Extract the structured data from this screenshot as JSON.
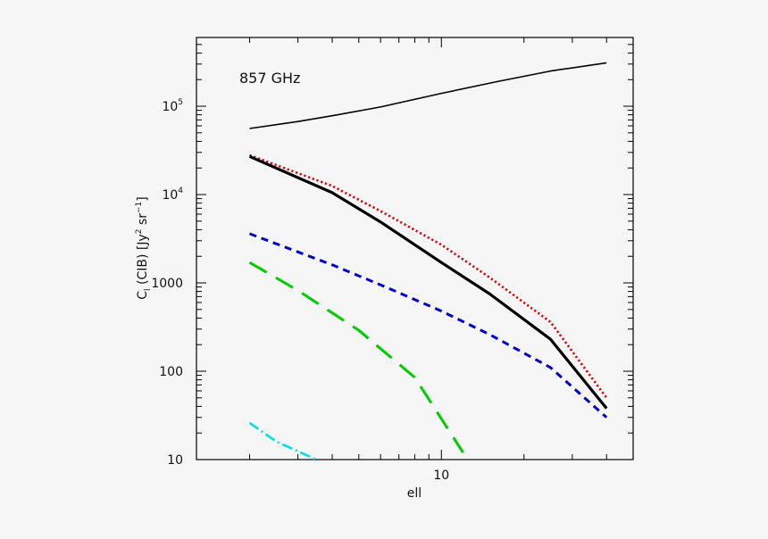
{
  "chart_data": {
    "type": "line",
    "title": "",
    "annotation": "857 GHz",
    "xlabel": "ell",
    "ylabel": "C_l (CIB) [Jy^2 sr^-1]",
    "xscale": "log",
    "yscale": "log",
    "xlim": [
      1.28,
      50
    ],
    "ylim": [
      10,
      600000
    ],
    "x_ticks": [
      {
        "value": 10,
        "label": "10"
      }
    ],
    "y_ticks": [
      {
        "value": 10,
        "label": "10"
      },
      {
        "value": 100,
        "label": "100"
      },
      {
        "value": 1000,
        "label": "1000"
      },
      {
        "value": 10000,
        "label": "10",
        "exp": "4"
      },
      {
        "value": 100000,
        "label": "10",
        "exp": "5"
      }
    ],
    "grid": false,
    "legend": "none",
    "series": [
      {
        "style": "solid-thin",
        "color": "#000000",
        "points": [
          [
            2,
            56000
          ],
          [
            3,
            67000
          ],
          [
            4,
            78000
          ],
          [
            6,
            98000
          ],
          [
            10,
            140000
          ],
          [
            16,
            190000
          ],
          [
            25,
            250000
          ],
          [
            40,
            310000
          ]
        ]
      },
      {
        "style": "dotted",
        "color": "#e00000",
        "points": [
          [
            2,
            28000
          ],
          [
            4,
            12500
          ],
          [
            6,
            6500
          ],
          [
            10,
            2700
          ],
          [
            15,
            1150
          ],
          [
            25,
            360
          ],
          [
            40,
            50
          ]
        ]
      },
      {
        "style": "solid-thick",
        "color": "#000000",
        "points": [
          [
            2,
            27000
          ],
          [
            4,
            10500
          ],
          [
            6,
            4900
          ],
          [
            10,
            1700
          ],
          [
            15,
            750
          ],
          [
            25,
            230
          ],
          [
            40,
            38
          ]
        ]
      },
      {
        "style": "dashed-short",
        "color": "#0000cc",
        "points": [
          [
            2,
            3600
          ],
          [
            4,
            1600
          ],
          [
            6,
            950
          ],
          [
            10,
            480
          ],
          [
            15,
            260
          ],
          [
            25,
            110
          ],
          [
            40,
            30
          ]
        ]
      },
      {
        "style": "dashed-long",
        "color": "#00cc00",
        "points": [
          [
            2,
            1700
          ],
          [
            3,
            820
          ],
          [
            5,
            290
          ],
          [
            8,
            85
          ],
          [
            12,
            12
          ]
        ]
      },
      {
        "style": "dash-dot",
        "color": "#00e0e0",
        "points": [
          [
            2,
            26
          ],
          [
            2.5,
            16
          ],
          [
            3.5,
            10
          ]
        ]
      }
    ]
  }
}
